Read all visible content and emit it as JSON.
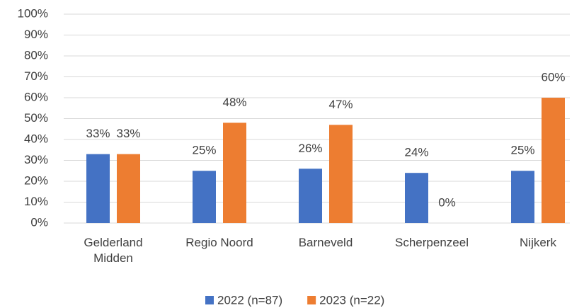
{
  "chart_data": {
    "type": "bar",
    "categories": [
      "Gelderland Midden",
      "Regio Noord",
      "Barneveld",
      "Scherpenzeel",
      "Nijkerk"
    ],
    "series": [
      {
        "name": "2022 (n=87)",
        "color": "#4472c4",
        "values": [
          33,
          25,
          26,
          24,
          25
        ],
        "value_labels": [
          "33%",
          "25%",
          "26%",
          "24%",
          "25%"
        ]
      },
      {
        "name": "2023 (n=22)",
        "color": "#ed7d31",
        "values": [
          33,
          48,
          47,
          0,
          60
        ],
        "value_labels": [
          "33%",
          "48%",
          "47%",
          "0%",
          "60%"
        ]
      }
    ],
    "ylim": [
      0,
      100
    ],
    "yticks": [
      {
        "value": 0,
        "label": "0%"
      },
      {
        "value": 10,
        "label": "10%"
      },
      {
        "value": 20,
        "label": "20%"
      },
      {
        "value": 30,
        "label": "30%"
      },
      {
        "value": 40,
        "label": "40%"
      },
      {
        "value": 50,
        "label": "50%"
      },
      {
        "value": 60,
        "label": "60%"
      },
      {
        "value": 70,
        "label": "70%"
      },
      {
        "value": 80,
        "label": "80%"
      },
      {
        "value": 90,
        "label": "90%"
      },
      {
        "value": 100,
        "label": "100%"
      }
    ],
    "grid": true,
    "legend": "bottom"
  }
}
